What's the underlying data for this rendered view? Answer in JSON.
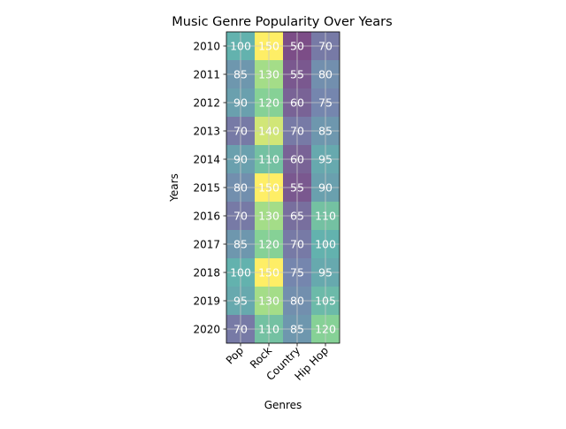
{
  "chart_data": {
    "type": "heatmap",
    "title": "Music Genre Popularity Over Years",
    "xlabel": "Genres",
    "ylabel": "Years",
    "x_categories": [
      "Pop",
      "Rock",
      "Country",
      "Hip Hop"
    ],
    "y_categories": [
      "2010",
      "2011",
      "2012",
      "2013",
      "2014",
      "2015",
      "2016",
      "2017",
      "2018",
      "2019",
      "2020"
    ],
    "values": [
      [
        100,
        150,
        50,
        70
      ],
      [
        85,
        130,
        55,
        80
      ],
      [
        90,
        120,
        60,
        75
      ],
      [
        70,
        140,
        70,
        85
      ],
      [
        90,
        110,
        60,
        95
      ],
      [
        80,
        150,
        55,
        90
      ],
      [
        70,
        130,
        65,
        110
      ],
      [
        85,
        120,
        70,
        100
      ],
      [
        100,
        150,
        75,
        95
      ],
      [
        95,
        130,
        80,
        105
      ],
      [
        70,
        110,
        85,
        120
      ]
    ],
    "value_range": [
      50,
      150
    ],
    "colormap": "viridis",
    "cell_opacity": 0.7,
    "grid": true,
    "value_label_color": "#ffffff"
  }
}
